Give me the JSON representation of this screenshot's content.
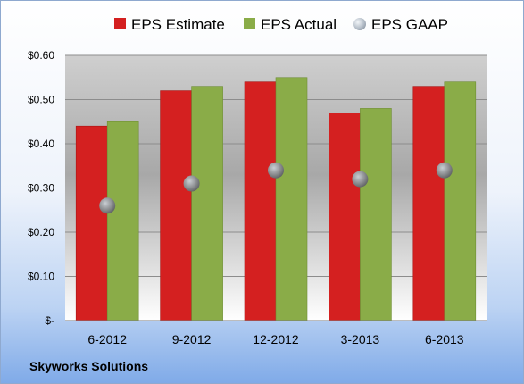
{
  "chart_data": {
    "type": "bar",
    "categories": [
      "6-2012",
      "9-2012",
      "12-2012",
      "3-2013",
      "6-2013"
    ],
    "series": [
      {
        "name": "EPS Estimate",
        "type": "bar",
        "color": "#d42020",
        "values": [
          0.44,
          0.52,
          0.54,
          0.47,
          0.53
        ]
      },
      {
        "name": "EPS Actual",
        "type": "bar",
        "color": "#8aac48",
        "values": [
          0.45,
          0.53,
          0.55,
          0.48,
          0.54
        ]
      },
      {
        "name": "EPS GAAP",
        "type": "scatter",
        "color": "#9aa4ae",
        "values": [
          0.26,
          0.31,
          0.34,
          0.32,
          0.34
        ]
      }
    ],
    "y_ticks": [
      "$-",
      "$0.10",
      "$0.20",
      "$0.30",
      "$0.40",
      "$0.50",
      "$0.60"
    ],
    "y_tick_values": [
      0,
      0.1,
      0.2,
      0.3,
      0.4,
      0.5,
      0.6
    ],
    "ylim": [
      0,
      0.6
    ],
    "grid": true,
    "legend_position": "top"
  },
  "company": "Skyworks Solutions"
}
